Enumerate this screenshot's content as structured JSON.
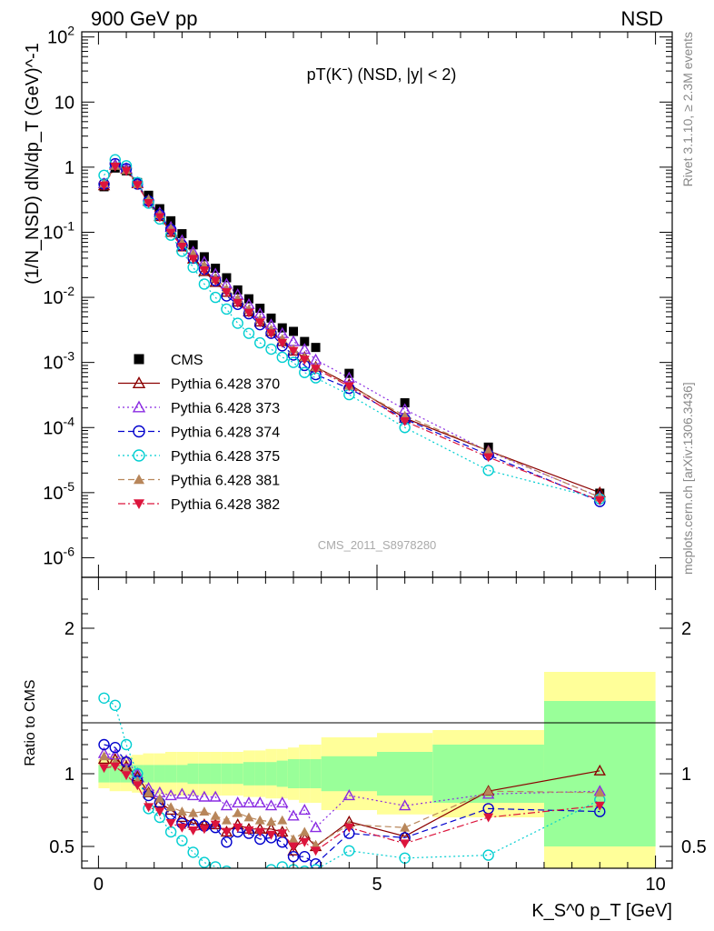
{
  "header": {
    "left": "900 GeV pp",
    "right": "NSD"
  },
  "side_labels": {
    "rivet": "Rivet 3.1.10, ≥ 2.3M events",
    "mcplots": "mcplots.cern.ch [arXiv:1306.3436]"
  },
  "watermark": "CMS_2011_S8978280",
  "chart_data": [
    {
      "type": "scatter",
      "panel": "main",
      "title": "pT(Kˉ) (NSD, |y| < 2)",
      "ylabel": "(1/N_NSD) dN/dp_T (GeV)^-1",
      "yscale": "log",
      "ylim": [
        5e-07,
        120
      ],
      "xlim": [
        -0.3,
        10.3
      ],
      "ytick_labels": [
        "10^-6",
        "10^-5",
        "10^-4",
        "10^-3",
        "10^-2",
        "10^-1",
        "1",
        "10",
        "10^2"
      ],
      "legend_position": "middle-left",
      "x": [
        0.1,
        0.3,
        0.5,
        0.7,
        0.9,
        1.1,
        1.3,
        1.5,
        1.7,
        1.9,
        2.1,
        2.3,
        2.5,
        2.7,
        2.9,
        3.1,
        3.3,
        3.5,
        3.7,
        3.9,
        4.5,
        5.5,
        7.0,
        9.0
      ],
      "series": [
        {
          "name": "CMS",
          "color": "#000000",
          "marker": "square",
          "values": [
            0.5,
            0.97,
            0.88,
            0.58,
            0.37,
            0.23,
            0.15,
            0.095,
            0.064,
            0.042,
            0.028,
            0.02,
            0.013,
            0.0095,
            0.0068,
            0.0048,
            0.0034,
            0.003,
            0.0021,
            0.0017,
            0.00068,
            0.00024,
            5e-05,
            9.8e-06
          ]
        },
        {
          "name": "Pythia 6.428 370",
          "color": "#8b0000",
          "marker": "open-triangle-up",
          "line": "solid",
          "values": [
            0.52,
            1.08,
            0.93,
            0.56,
            0.3,
            0.175,
            0.1,
            0.06,
            0.039,
            0.025,
            0.017,
            0.012,
            0.0085,
            0.006,
            0.0042,
            0.003,
            0.0021,
            0.0015,
            0.0012,
            0.00085,
            0.00046,
            0.00014,
            4.4e-05,
            1e-05
          ]
        },
        {
          "name": "Pythia 6.428 373",
          "color": "#8a2be2",
          "marker": "open-triangle-up",
          "line": "dotted",
          "values": [
            0.56,
            1.1,
            0.96,
            0.58,
            0.31,
            0.2,
            0.12,
            0.075,
            0.05,
            0.035,
            0.023,
            0.016,
            0.011,
            0.0078,
            0.0056,
            0.0038,
            0.0028,
            0.0021,
            0.0016,
            0.0011,
            0.00058,
            0.00019,
            4.3e-05,
            8.6e-06
          ]
        },
        {
          "name": "Pythia 6.428 374",
          "color": "#0000cd",
          "marker": "open-circle",
          "line": "dashed",
          "values": [
            0.55,
            1.13,
            0.95,
            0.55,
            0.3,
            0.185,
            0.11,
            0.063,
            0.04,
            0.027,
            0.018,
            0.0105,
            0.0078,
            0.0056,
            0.0038,
            0.0028,
            0.0018,
            0.0013,
            0.0009,
            0.00065,
            0.0004,
            0.000135,
            3.8e-05,
            7.3e-06
          ]
        },
        {
          "name": "Pythia 6.428 375",
          "color": "#00ced1",
          "marker": "open-circle",
          "line": "dotted",
          "values": [
            0.75,
            1.3,
            1.05,
            0.58,
            0.28,
            0.16,
            0.09,
            0.051,
            0.029,
            0.016,
            0.01,
            0.0066,
            0.004,
            0.0028,
            0.002,
            0.0016,
            0.0012,
            0.001,
            0.0007,
            0.00058,
            0.00032,
            0.0001,
            2.2e-05,
            8e-06
          ]
        },
        {
          "name": "Pythia 6.428 381",
          "color": "#b8865a",
          "marker": "filled-triangle-up",
          "line": "dashed",
          "values": [
            0.56,
            1.05,
            0.9,
            0.55,
            0.32,
            0.19,
            0.115,
            0.07,
            0.047,
            0.031,
            0.02,
            0.0135,
            0.0095,
            0.0066,
            0.0046,
            0.0032,
            0.0023,
            0.0016,
            0.0012,
            0.00085,
            0.00044,
            0.000152,
            4.4e-05,
            8.5e-06
          ]
        },
        {
          "name": "Pythia 6.428 382",
          "color": "#dc143c",
          "marker": "filled-triangle-down",
          "line": "dashdot",
          "values": [
            0.52,
            1.02,
            0.87,
            0.53,
            0.28,
            0.17,
            0.098,
            0.06,
            0.039,
            0.026,
            0.018,
            0.012,
            0.0082,
            0.0058,
            0.0041,
            0.0028,
            0.002,
            0.0015,
            0.0011,
            0.0008,
            0.00043,
            0.000125,
            3.5e-05,
            7.6e-06
          ]
        }
      ]
    },
    {
      "type": "scatter",
      "panel": "ratio",
      "ylabel": "Ratio to CMS",
      "xlabel": "K_S^0 p_T [GeV]",
      "ylim": [
        0.35,
        2.35
      ],
      "xlim": [
        -0.3,
        10.3
      ],
      "xticks": [
        0,
        5,
        10
      ],
      "yticks": [
        0.5,
        1,
        2
      ],
      "bands": {
        "x_edges": [
          0,
          0.2,
          0.4,
          0.6,
          0.8,
          1.0,
          1.2,
          1.4,
          1.6,
          1.8,
          2.0,
          2.2,
          2.4,
          2.6,
          2.8,
          3.0,
          3.2,
          3.4,
          3.6,
          3.8,
          4.0,
          5.0,
          6.0,
          8.0,
          10.0
        ],
        "stat_half_width": [
          0.06,
          0.06,
          0.06,
          0.06,
          0.06,
          0.06,
          0.06,
          0.06,
          0.07,
          0.07,
          0.07,
          0.07,
          0.07,
          0.08,
          0.08,
          0.08,
          0.09,
          0.1,
          0.1,
          0.1,
          0.12,
          0.15,
          0.2,
          0.5
        ],
        "total_half_width": [
          0.1,
          0.12,
          0.12,
          0.13,
          0.14,
          0.14,
          0.15,
          0.15,
          0.15,
          0.15,
          0.15,
          0.15,
          0.15,
          0.16,
          0.16,
          0.17,
          0.17,
          0.18,
          0.2,
          0.2,
          0.25,
          0.28,
          0.3,
          0.7
        ],
        "stat_color": "#99ff99",
        "total_color": "#ffff99"
      },
      "x": [
        0.1,
        0.3,
        0.5,
        0.7,
        0.9,
        1.1,
        1.3,
        1.5,
        1.7,
        1.9,
        2.1,
        2.3,
        2.5,
        2.7,
        2.9,
        3.1,
        3.3,
        3.5,
        3.7,
        3.9,
        4.5,
        5.5,
        7.0,
        9.0
      ],
      "series": [
        {
          "name": "Pythia 6.428 370",
          "values": [
            1.1,
            1.1,
            1.05,
            0.98,
            0.87,
            0.8,
            0.75,
            0.7,
            0.66,
            0.65,
            0.65,
            0.6,
            0.65,
            0.62,
            0.62,
            0.62,
            0.6,
            0.47,
            0.58,
            0.5,
            0.67,
            0.57,
            0.88,
            1.02
          ]
        },
        {
          "name": "Pythia 6.428 373",
          "values": [
            1.14,
            1.13,
            1.09,
            1.0,
            0.9,
            0.87,
            0.85,
            0.86,
            0.85,
            0.84,
            0.84,
            0.78,
            0.8,
            0.8,
            0.8,
            0.78,
            0.8,
            0.71,
            0.75,
            0.63,
            0.85,
            0.78,
            0.86,
            0.88
          ]
        },
        {
          "name": "Pythia 6.428 374",
          "values": [
            1.2,
            1.18,
            1.08,
            0.95,
            0.85,
            0.8,
            0.72,
            0.66,
            0.65,
            0.64,
            0.63,
            0.53,
            0.6,
            0.59,
            0.55,
            0.56,
            0.53,
            0.43,
            0.43,
            0.38,
            0.59,
            0.56,
            0.76,
            0.74
          ]
        },
        {
          "name": "Pythia 6.428 375",
          "values": [
            1.52,
            1.47,
            1.2,
            1.0,
            0.76,
            0.7,
            0.6,
            0.54,
            0.46,
            0.39,
            0.36,
            0.33,
            0.31,
            0.3,
            0.3,
            0.34,
            0.36,
            0.34,
            0.33,
            0.34,
            0.47,
            0.42,
            0.44,
            0.82
          ]
        },
        {
          "name": "Pythia 6.428 381",
          "values": [
            1.12,
            1.08,
            1.03,
            0.95,
            0.87,
            0.83,
            0.77,
            0.74,
            0.73,
            0.74,
            0.71,
            0.68,
            0.73,
            0.7,
            0.68,
            0.67,
            0.68,
            0.55,
            0.6,
            0.51,
            0.65,
            0.63,
            0.88,
            0.87
          ]
        },
        {
          "name": "Pythia 6.428 382",
          "values": [
            1.04,
            1.05,
            0.99,
            0.92,
            0.77,
            0.74,
            0.66,
            0.63,
            0.61,
            0.62,
            0.65,
            0.6,
            0.63,
            0.61,
            0.6,
            0.58,
            0.59,
            0.5,
            0.53,
            0.47,
            0.63,
            0.52,
            0.7,
            0.78
          ]
        }
      ]
    }
  ]
}
